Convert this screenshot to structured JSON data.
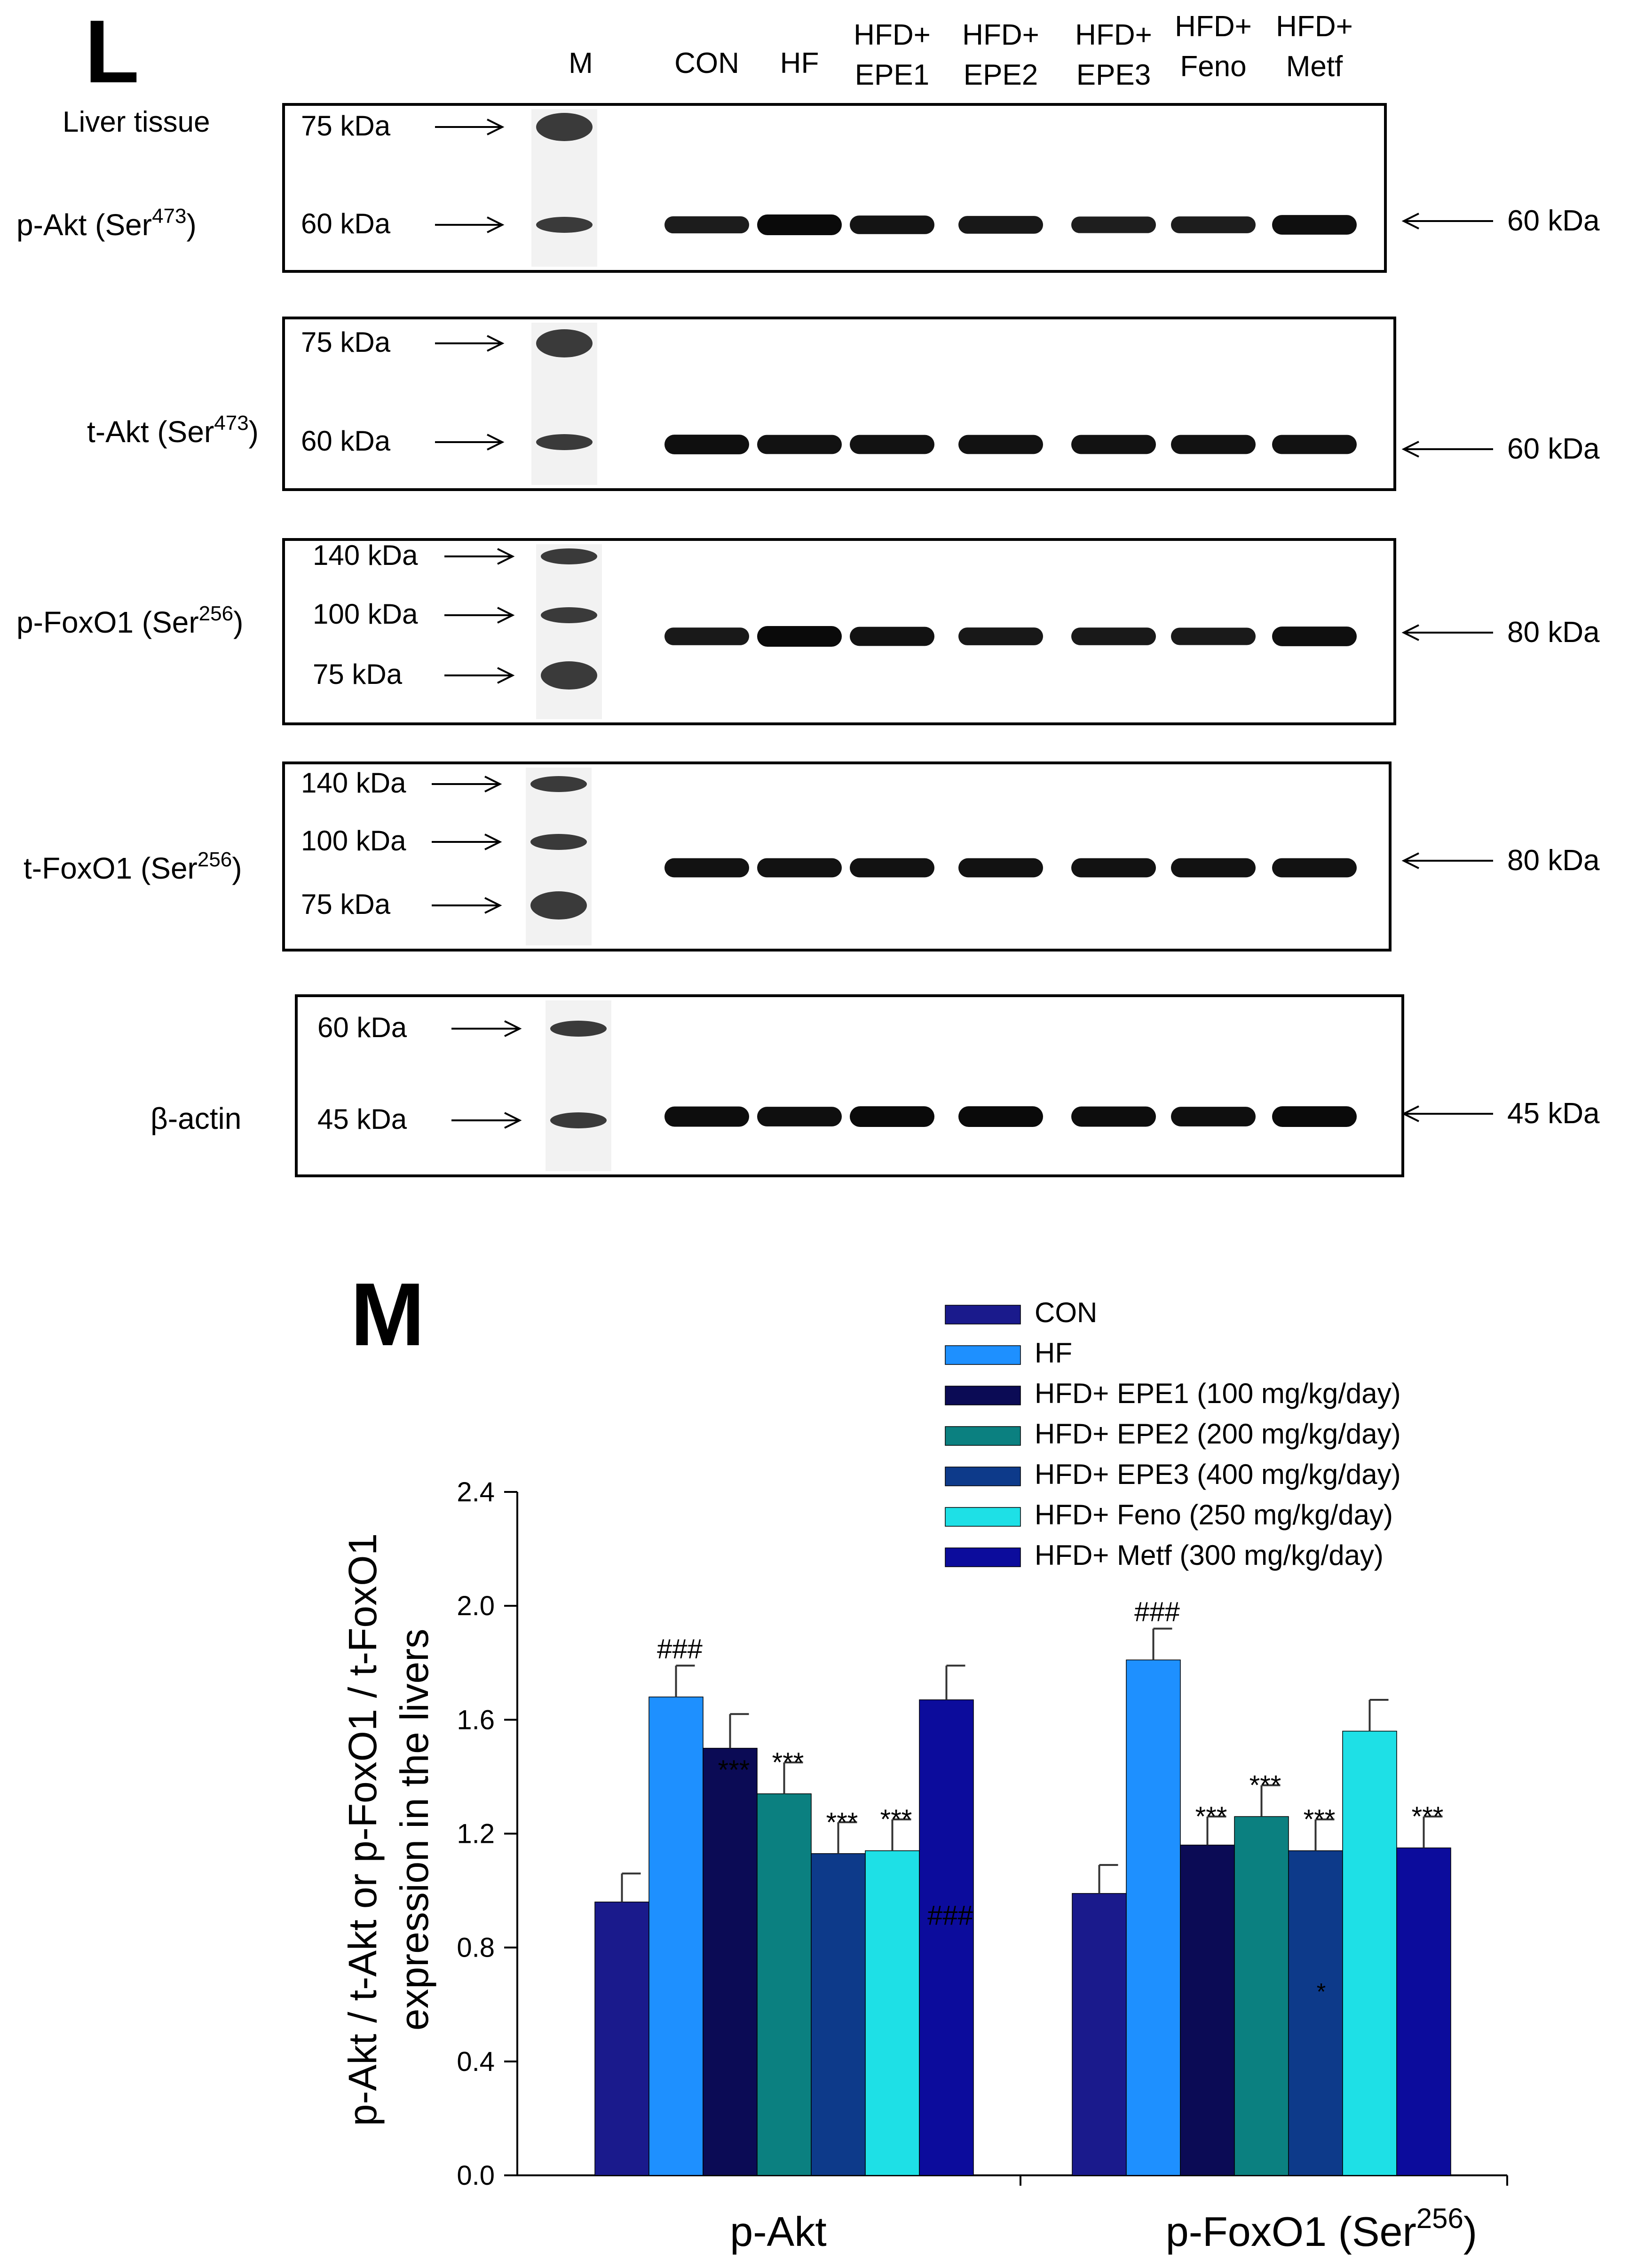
{
  "panel_l": {
    "letter": "L",
    "tissue_label": "Liver tissue",
    "lanes": [
      {
        "lines": [
          "M"
        ]
      },
      {
        "lines": [
          "CON"
        ]
      },
      {
        "lines": [
          "HF"
        ]
      },
      {
        "lines": [
          "HFD+",
          "EPE1"
        ]
      },
      {
        "lines": [
          "HFD+",
          "EPE2"
        ]
      },
      {
        "lines": [
          "HFD+",
          "EPE3"
        ]
      },
      {
        "lines": [
          "HFD+",
          "Feno"
        ]
      },
      {
        "lines": [
          "HFD+",
          "Metf"
        ]
      }
    ],
    "blots": [
      {
        "name": "p-Akt",
        "label": "p-Akt  (Ser",
        "sup": "473",
        "label_end": ")",
        "markers": [
          "75 kDa",
          "60 kDa"
        ],
        "target": "60 kDa",
        "intensity": [
          0.65,
          1.0,
          0.8,
          0.72,
          0.6,
          0.62,
          0.9
        ]
      },
      {
        "name": "t-Akt",
        "label": "t-Akt  (Ser",
        "sup": "473",
        "label_end": ")",
        "markers": [
          "75 kDa",
          "60 kDa"
        ],
        "target": "60 kDa",
        "intensity": [
          0.9,
          0.85,
          0.85,
          0.85,
          0.85,
          0.85,
          0.85
        ]
      },
      {
        "name": "p-FoxO1",
        "label": "p-FoxO1  (Ser",
        "sup": "256",
        "label_end": ")",
        "markers": [
          "140 kDa",
          "100 kDa",
          "75 kDa"
        ],
        "target": "80 kDa",
        "intensity": [
          0.7,
          1.0,
          0.85,
          0.72,
          0.7,
          0.68,
          0.9
        ]
      },
      {
        "name": "t-FoxO1",
        "label": "t-FoxO1  (Ser",
        "sup": "256",
        "label_end": ")",
        "markers": [
          "140 kDa",
          "100 kDa",
          "75 kDa"
        ],
        "target": "80 kDa",
        "intensity": [
          0.85,
          0.85,
          0.85,
          0.85,
          0.85,
          0.85,
          0.85
        ]
      },
      {
        "name": "beta-actin",
        "label": "β-actin",
        "sup": "",
        "label_end": "",
        "markers": [
          "60 kDa",
          "45 kDa"
        ],
        "target": "45 kDa",
        "intensity": [
          0.95,
          0.9,
          1.0,
          1.0,
          0.95,
          0.9,
          1.0
        ]
      }
    ]
  },
  "panel_m": {
    "letter": "M"
  },
  "chart_data": {
    "type": "bar",
    "categories": [
      "p-Akt",
      "p-FoxO1 (Ser256)"
    ],
    "category_label_parts": [
      {
        "text": "p-Akt",
        "sup": ""
      },
      {
        "text": "p-FoxO1 (Ser",
        "sup": "256",
        "end": ")"
      }
    ],
    "ylabel_lines": [
      "p-Akt / t-Akt or p-FoxO1 / t-FoxO1",
      "expression in the livers"
    ],
    "ylim": [
      0,
      2.4
    ],
    "yticks": [
      "0.0",
      "0.4",
      "0.8",
      "1.2",
      "1.6",
      "2.0",
      "2.4"
    ],
    "tick_step": 0.4,
    "legend_position": "top-right",
    "series": [
      {
        "name": "CON",
        "color": "#1a1a8c",
        "values": [
          0.96,
          0.99
        ],
        "errors": [
          0.1,
          0.1
        ],
        "annotations": [
          "",
          ""
        ]
      },
      {
        "name": "HF",
        "color": "#1e90ff",
        "values": [
          1.68,
          1.81
        ],
        "errors": [
          0.11,
          0.11
        ],
        "annotations": [
          "###",
          "###"
        ]
      },
      {
        "name": "HFD+ EPE1 (100 mg/kg/day)",
        "color": "#0b0b55",
        "values": [
          1.5,
          1.16
        ],
        "errors": [
          0.12,
          0.1
        ],
        "annotations": [
          "***",
          "***"
        ]
      },
      {
        "name": "HFD+ EPE2 (200 mg/kg/day)",
        "color": "#0b8080",
        "values": [
          1.34,
          1.26
        ],
        "errors": [
          0.11,
          0.11
        ],
        "annotations": [
          "***",
          "***"
        ]
      },
      {
        "name": "HFD+ EPE3 (400 mg/kg/day)",
        "color": "#0d3a8a",
        "values": [
          1.13,
          1.14
        ],
        "errors": [
          0.11,
          0.11
        ],
        "annotations": [
          "***",
          "***"
        ]
      },
      {
        "name": "HFD+ Feno (250 mg/kg/day)",
        "color": "#1ee0e6",
        "values": [
          1.14,
          1.56
        ],
        "errors": [
          0.11,
          0.11
        ],
        "annotations": [
          "***",
          ""
        ]
      },
      {
        "name": "HFD+ Metf (300 mg/kg/day)",
        "color": "#0c0c9c",
        "values": [
          1.67,
          1.15
        ],
        "errors": [
          0.12,
          0.11
        ],
        "annotations": [
          "###",
          "***"
        ]
      }
    ],
    "extra_annotations": [
      {
        "text": "*",
        "category": 1,
        "series": 4,
        "value": 0.65
      }
    ]
  }
}
